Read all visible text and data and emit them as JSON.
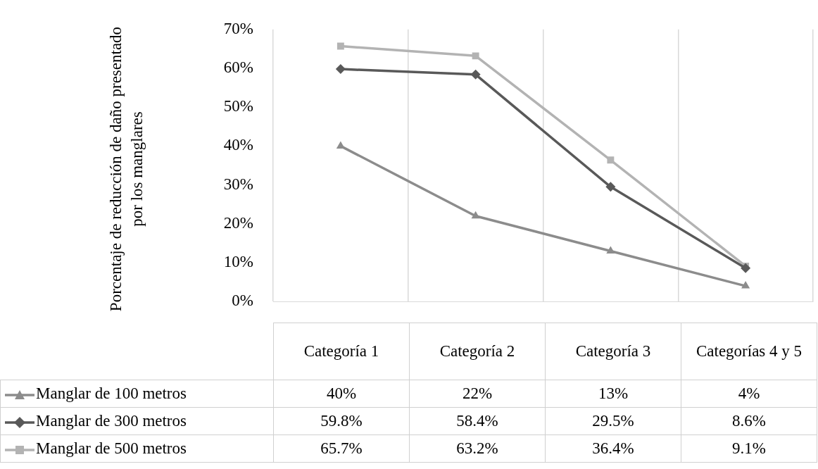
{
  "chart_data": {
    "type": "line",
    "ylabel": "Porcentaje de reducción de daño presentado por los manglares",
    "categories": [
      "Categoría 1",
      "Categoría 2",
      "Categoría 3",
      "Categorías 4 y 5"
    ],
    "series": [
      {
        "name": "Manglar de 100 metros",
        "color": "#8c8c8c",
        "marker": "triangle",
        "values": [
          40,
          22,
          13,
          4
        ],
        "value_labels": [
          "40%",
          "22%",
          "13%",
          "4%"
        ]
      },
      {
        "name": "Manglar de 300 metros",
        "color": "#595959",
        "marker": "diamond",
        "values": [
          59.8,
          58.4,
          29.5,
          8.6
        ],
        "value_labels": [
          "59.8%",
          "58.4%",
          "29.5%",
          "8.6%"
        ]
      },
      {
        "name": "Manglar de 500 metros",
        "color": "#b3b3b3",
        "marker": "square",
        "values": [
          65.7,
          63.2,
          36.4,
          9.1
        ],
        "value_labels": [
          "65.7%",
          "63.2%",
          "36.4%",
          "9.1%"
        ]
      }
    ],
    "ylim": [
      0,
      70
    ],
    "yticks": [
      {
        "value": 0,
        "label": "0%"
      },
      {
        "value": 10,
        "label": "10%"
      },
      {
        "value": 20,
        "label": "20%"
      },
      {
        "value": 30,
        "label": "30%"
      },
      {
        "value": 40,
        "label": "40%"
      },
      {
        "value": 50,
        "label": "50%"
      },
      {
        "value": 60,
        "label": "60%"
      },
      {
        "value": 70,
        "label": "70%"
      }
    ],
    "grid": "x",
    "legend": "bottom left",
    "line_style": "solid"
  }
}
